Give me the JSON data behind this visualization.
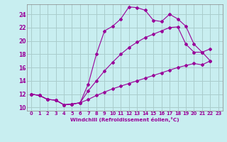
{
  "xlabel": "Windchill (Refroidissement éolien,°C)",
  "background_color": "#c8eef0",
  "grid_color": "#aacccc",
  "line_color": "#990099",
  "xlim": [
    -0.5,
    23.5
  ],
  "ylim": [
    9.5,
    25.5
  ],
  "yticks": [
    10,
    12,
    14,
    16,
    18,
    20,
    22,
    24
  ],
  "xticks": [
    0,
    1,
    2,
    3,
    4,
    5,
    6,
    7,
    8,
    9,
    10,
    11,
    12,
    13,
    14,
    15,
    16,
    17,
    18,
    19,
    20,
    21,
    22,
    23
  ],
  "series": [
    {
      "x": [
        0,
        1,
        2,
        3,
        4,
        5,
        6,
        7,
        8,
        9,
        10,
        11,
        12,
        13,
        14,
        15,
        16,
        17,
        18,
        19,
        20,
        21,
        22
      ],
      "y": [
        12.0,
        11.8,
        11.2,
        11.1,
        10.4,
        10.5,
        10.7,
        13.5,
        18.0,
        21.5,
        22.2,
        23.3,
        25.1,
        25.0,
        24.6,
        23.1,
        22.9,
        24.0,
        23.3,
        22.2,
        19.5,
        18.3,
        18.8
      ]
    },
    {
      "x": [
        0,
        1,
        2,
        3,
        4,
        5,
        6,
        7,
        8,
        9,
        10,
        11,
        12,
        13,
        14,
        15,
        16,
        17,
        18,
        19,
        20,
        21,
        22
      ],
      "y": [
        12.0,
        11.8,
        11.2,
        11.1,
        10.4,
        10.5,
        10.7,
        12.5,
        14.0,
        15.5,
        16.8,
        18.0,
        19.0,
        19.8,
        20.5,
        21.0,
        21.5,
        22.0,
        22.1,
        19.5,
        18.3,
        18.3,
        17.0
      ]
    },
    {
      "x": [
        0,
        1,
        2,
        3,
        4,
        5,
        6,
        7,
        8,
        9,
        10,
        11,
        12,
        13,
        14,
        15,
        16,
        17,
        18,
        19,
        20,
        21,
        22
      ],
      "y": [
        12.0,
        11.8,
        11.2,
        11.1,
        10.4,
        10.5,
        10.7,
        11.2,
        11.8,
        12.3,
        12.8,
        13.2,
        13.6,
        14.0,
        14.4,
        14.8,
        15.2,
        15.6,
        16.0,
        16.3,
        16.6,
        16.4,
        17.0
      ]
    }
  ]
}
